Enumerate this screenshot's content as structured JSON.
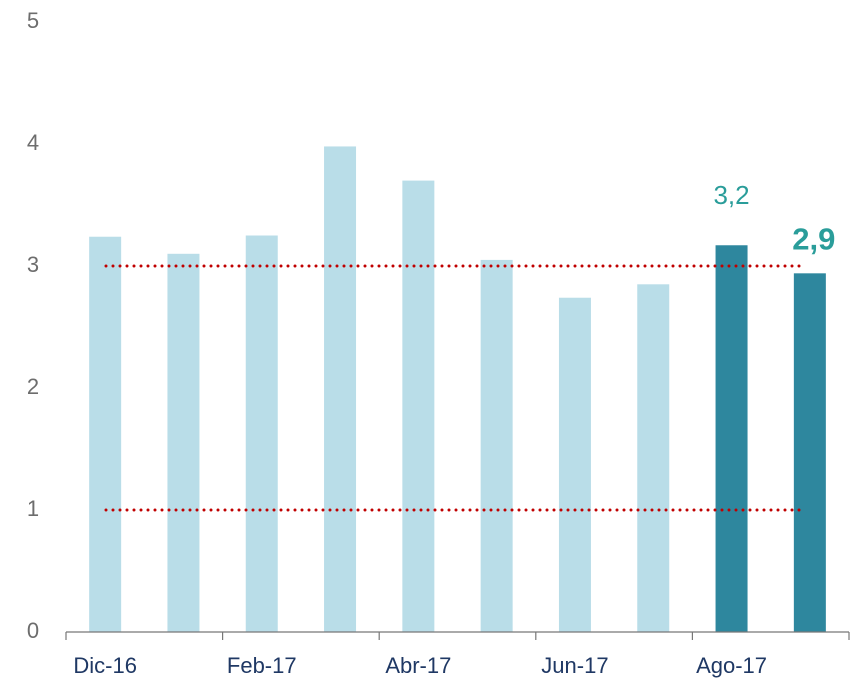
{
  "chart_data": {
    "type": "bar",
    "categories": [
      "Dic-16",
      null,
      "Feb-17",
      null,
      "Abr-17",
      null,
      "Jun-17",
      null,
      "Ago-17",
      null
    ],
    "values": [
      3.24,
      3.1,
      3.25,
      3.98,
      3.7,
      3.05,
      2.74,
      2.85,
      3.17,
      2.94
    ],
    "value_labels": [
      null,
      null,
      null,
      null,
      null,
      null,
      null,
      null,
      "3,2",
      "2,9"
    ],
    "colors": [
      "#b9dde8",
      "#b9dde8",
      "#b9dde8",
      "#b9dde8",
      "#b9dde8",
      "#b9dde8",
      "#b9dde8",
      "#b9dde8",
      "#2e879e",
      "#2e879e"
    ],
    "ylim": [
      0,
      5
    ],
    "yticks": [
      0,
      1,
      2,
      3,
      4,
      5
    ],
    "reference_lines": [
      3,
      1
    ],
    "reference_color": "#c00000"
  }
}
